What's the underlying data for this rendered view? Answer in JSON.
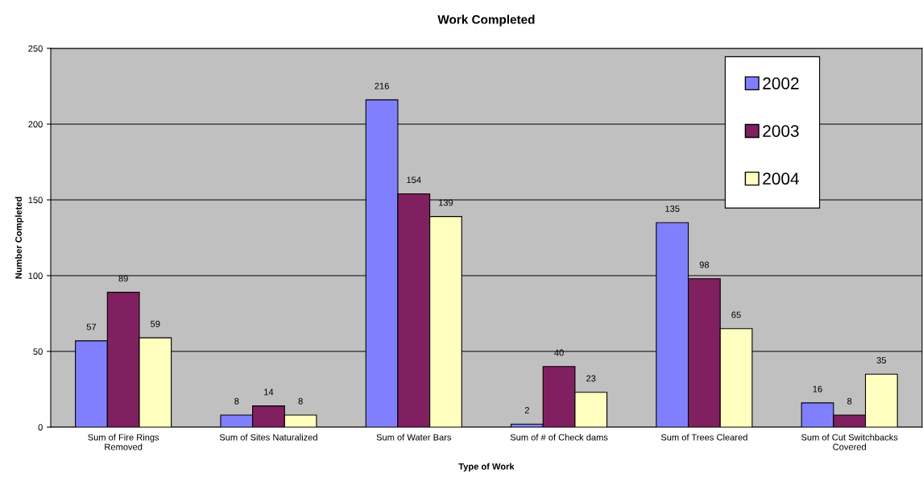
{
  "chart_data": {
    "type": "bar",
    "title": "Work Completed",
    "xlabel": "Type of Work",
    "ylabel": "Number Completed",
    "categories": [
      "Sum of Fire Rings Removed",
      "Sum of Sites Naturalized",
      "Sum of Water Bars",
      "Sum of # of Check dams",
      "Sum of Trees Cleared",
      "Sum of Cut Switchbacks Covered"
    ],
    "series": [
      {
        "name": "2002",
        "color": "#8080ff",
        "values": [
          57,
          8,
          216,
          2,
          135,
          16
        ]
      },
      {
        "name": "2003",
        "color": "#802060",
        "values": [
          89,
          14,
          154,
          40,
          98,
          8
        ]
      },
      {
        "name": "2004",
        "color": "#ffffc0",
        "values": [
          59,
          8,
          139,
          23,
          65,
          35
        ]
      }
    ],
    "ylim": [
      0,
      250
    ],
    "yticks": [
      0,
      50,
      100,
      150,
      200,
      250
    ],
    "grid": "y",
    "legend": "top right",
    "data_labels": true
  }
}
